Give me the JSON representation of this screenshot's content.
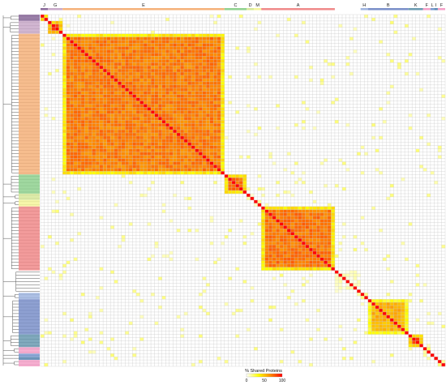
{
  "chart_data": {
    "type": "heatmap",
    "n": 110,
    "value_scale": {
      "label": "% Shared Proteins",
      "ticks": [
        "0",
        "50",
        "100"
      ],
      "min": 0,
      "max": 100,
      "colors": [
        "#ffffff",
        "#ffff00",
        "#ff8c00",
        "#ff0000"
      ]
    },
    "groups": [
      {
        "label": "J",
        "start": 0,
        "end": 2,
        "color": "#8a6a9a",
        "within": 85
      },
      {
        "label": "G",
        "start": 2,
        "end": 6,
        "color": "#c9a9c9",
        "within": 90
      },
      {
        "label": "E",
        "start": 6,
        "end": 50,
        "color": "#f5b27a",
        "within": 70
      },
      {
        "label": "C",
        "start": 50,
        "end": 56,
        "color": "#8fd18f",
        "within": 75
      },
      {
        "label": "D",
        "start": 56,
        "end": 58,
        "color": "#d7e89a",
        "within": 15
      },
      {
        "label": "M",
        "start": 58,
        "end": 60,
        "color": "#f5f59a",
        "within": 15
      },
      {
        "label": "A",
        "start": 60,
        "end": 80,
        "color": "#f08a8a",
        "within": 72
      },
      {
        "label": "",
        "start": 80,
        "end": 87,
        "color": "#ffffff",
        "within": 5
      },
      {
        "label": "H",
        "start": 87,
        "end": 89,
        "color": "#9fb5e0",
        "within": 20
      },
      {
        "label": "B",
        "start": 89,
        "end": 100,
        "color": "#7a8fc9",
        "within": 55
      },
      {
        "label": "K",
        "start": 100,
        "end": 104,
        "color": "#6a9ab0",
        "within": 85
      },
      {
        "label": "F",
        "start": 104,
        "end": 106,
        "color": "#f5a0c8",
        "within": 30
      },
      {
        "label": "L",
        "start": 106,
        "end": 107,
        "color": "#7a9ad0",
        "within": 40
      },
      {
        "label": "I",
        "start": 107,
        "end": 108,
        "color": "#5a8ab5",
        "within": 40
      },
      {
        "label": "F",
        "start": 108,
        "end": 110,
        "color": "#f5a0c8",
        "within": 30
      }
    ]
  }
}
